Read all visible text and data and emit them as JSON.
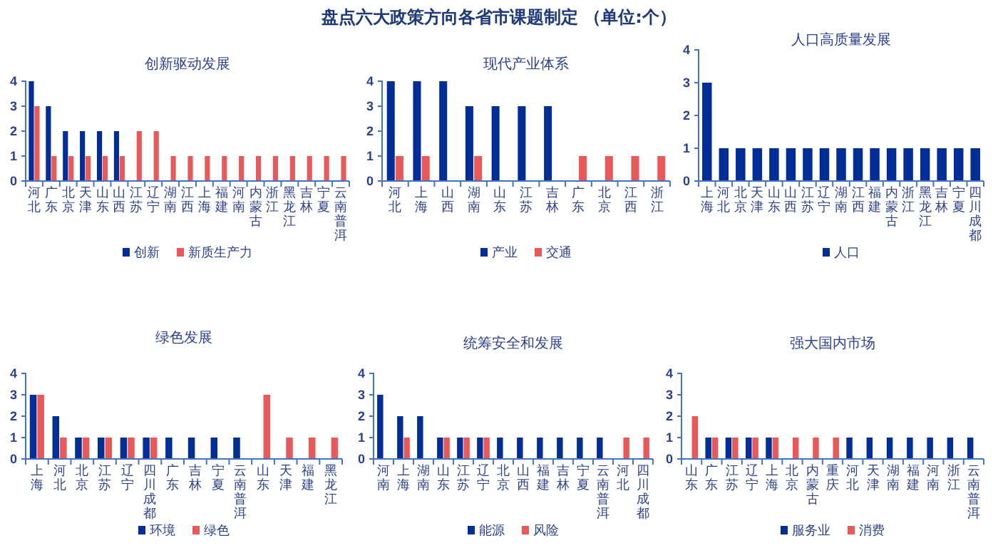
{
  "chart_data": [
    {
      "type": "bar",
      "annotations": [
        "盘点六大政策方向各省市课题制定 （单位:个）"
      ],
      "title": "创新驱动发展",
      "categories": [
        "河北",
        "广东",
        "北京",
        "天津",
        "山东",
        "山西",
        "江苏",
        "辽宁",
        "湖南",
        "江西",
        "上海",
        "福建",
        "河南",
        "内蒙古",
        "浙江",
        "黑龙江",
        "吉林",
        "宁夏",
        "云南普洱"
      ],
      "series": [
        {
          "name": "创新",
          "color": "#002d96",
          "values": [
            4,
            3,
            2,
            2,
            2,
            2,
            0,
            0,
            0,
            0,
            0,
            0,
            0,
            0,
            0,
            0,
            0,
            0,
            0
          ]
        },
        {
          "name": "新质生产力",
          "color": "#e85a5a",
          "values": [
            3,
            1,
            1,
            1,
            1,
            1,
            2,
            2,
            1,
            1,
            1,
            1,
            1,
            1,
            1,
            1,
            1,
            1,
            1
          ]
        }
      ],
      "ylim": [
        0,
        4
      ],
      "yticks": [
        0,
        1,
        2,
        3,
        4
      ],
      "legend": "bottom"
    },
    {
      "type": "bar",
      "title": "现代产业体系",
      "categories": [
        "河北",
        "上海",
        "山西",
        "湖南",
        "山东",
        "江苏",
        "吉林",
        "广东",
        "北京",
        "江西",
        "浙江"
      ],
      "series": [
        {
          "name": "产业",
          "color": "#002d96",
          "values": [
            4,
            4,
            4,
            3,
            3,
            3,
            3,
            0,
            0,
            0,
            0
          ]
        },
        {
          "name": "交通",
          "color": "#e85a5a",
          "values": [
            1,
            1,
            0,
            1,
            0,
            0,
            0,
            1,
            1,
            1,
            1
          ]
        }
      ],
      "ylim": [
        0,
        4
      ],
      "yticks": [
        0,
        1,
        2,
        3,
        4
      ],
      "legend": "bottom"
    },
    {
      "type": "bar",
      "title": "人口高质量发展",
      "categories": [
        "上海",
        "河北",
        "北京",
        "天津",
        "山东",
        "山西",
        "江苏",
        "辽宁",
        "湖南",
        "江西",
        "福建",
        "内蒙古",
        "浙江",
        "黑龙江",
        "吉林",
        "宁夏",
        "四川成都"
      ],
      "series": [
        {
          "name": "人口",
          "color": "#002d96",
          "values": [
            3,
            1,
            1,
            1,
            1,
            1,
            1,
            1,
            1,
            1,
            1,
            1,
            1,
            1,
            1,
            1,
            1
          ]
        }
      ],
      "ylim": [
        0,
        4
      ],
      "yticks": [
        0,
        1,
        2,
        3,
        4
      ],
      "legend": "bottom"
    },
    {
      "type": "bar",
      "title": "绿色发展",
      "categories": [
        "上海",
        "河北",
        "北京",
        "江苏",
        "辽宁",
        "四川成都",
        "广东",
        "吉林",
        "宁夏",
        "云南普洱",
        "山东",
        "天津",
        "福建",
        "黑龙江"
      ],
      "series": [
        {
          "name": "环境",
          "color": "#002d96",
          "values": [
            3,
            2,
            1,
            1,
            1,
            1,
            1,
            1,
            1,
            1,
            0,
            0,
            0,
            0
          ]
        },
        {
          "name": "绿色",
          "color": "#e85a5a",
          "values": [
            3,
            1,
            1,
            1,
            1,
            1,
            0,
            0,
            0,
            0,
            3,
            1,
            1,
            1
          ]
        }
      ],
      "ylim": [
        0,
        4
      ],
      "yticks": [
        0,
        1,
        2,
        3,
        4
      ],
      "legend": "bottom"
    },
    {
      "type": "bar",
      "title": "统筹安全和发展",
      "categories": [
        "河南",
        "上海",
        "湖南",
        "山东",
        "江苏",
        "辽宁",
        "北京",
        "山西",
        "福建",
        "吉林",
        "宁夏",
        "云南普洱",
        "河北",
        "四川成都"
      ],
      "series": [
        {
          "name": "能源",
          "color": "#002d96",
          "values": [
            3,
            2,
            2,
            1,
            1,
            1,
            1,
            1,
            1,
            1,
            1,
            1,
            0,
            0
          ]
        },
        {
          "name": "风险",
          "color": "#e85a5a",
          "values": [
            0,
            1,
            0,
            1,
            1,
            1,
            0,
            0,
            0,
            0,
            0,
            0,
            1,
            1
          ]
        }
      ],
      "ylim": [
        0,
        4
      ],
      "yticks": [
        0,
        1,
        2,
        3,
        4
      ],
      "legend": "bottom"
    },
    {
      "type": "bar",
      "title": "强大国内市场",
      "categories": [
        "山东",
        "广东",
        "江苏",
        "辽宁",
        "上海",
        "北京",
        "内蒙古",
        "重庆",
        "河北",
        "天津",
        "湖南",
        "福建",
        "河南",
        "浙江",
        "云南普洱"
      ],
      "series": [
        {
          "name": "服务业",
          "color": "#002d96",
          "values": [
            0,
            1,
            1,
            1,
            1,
            0,
            0,
            0,
            1,
            1,
            1,
            1,
            1,
            1,
            1
          ]
        },
        {
          "name": "消费",
          "color": "#e85a5a",
          "values": [
            2,
            1,
            1,
            1,
            1,
            1,
            1,
            1,
            0,
            0,
            0,
            0,
            0,
            0,
            0
          ]
        }
      ],
      "ylim": [
        0,
        4
      ],
      "yticks": [
        0,
        1,
        2,
        3,
        4
      ],
      "legend": "bottom"
    }
  ]
}
